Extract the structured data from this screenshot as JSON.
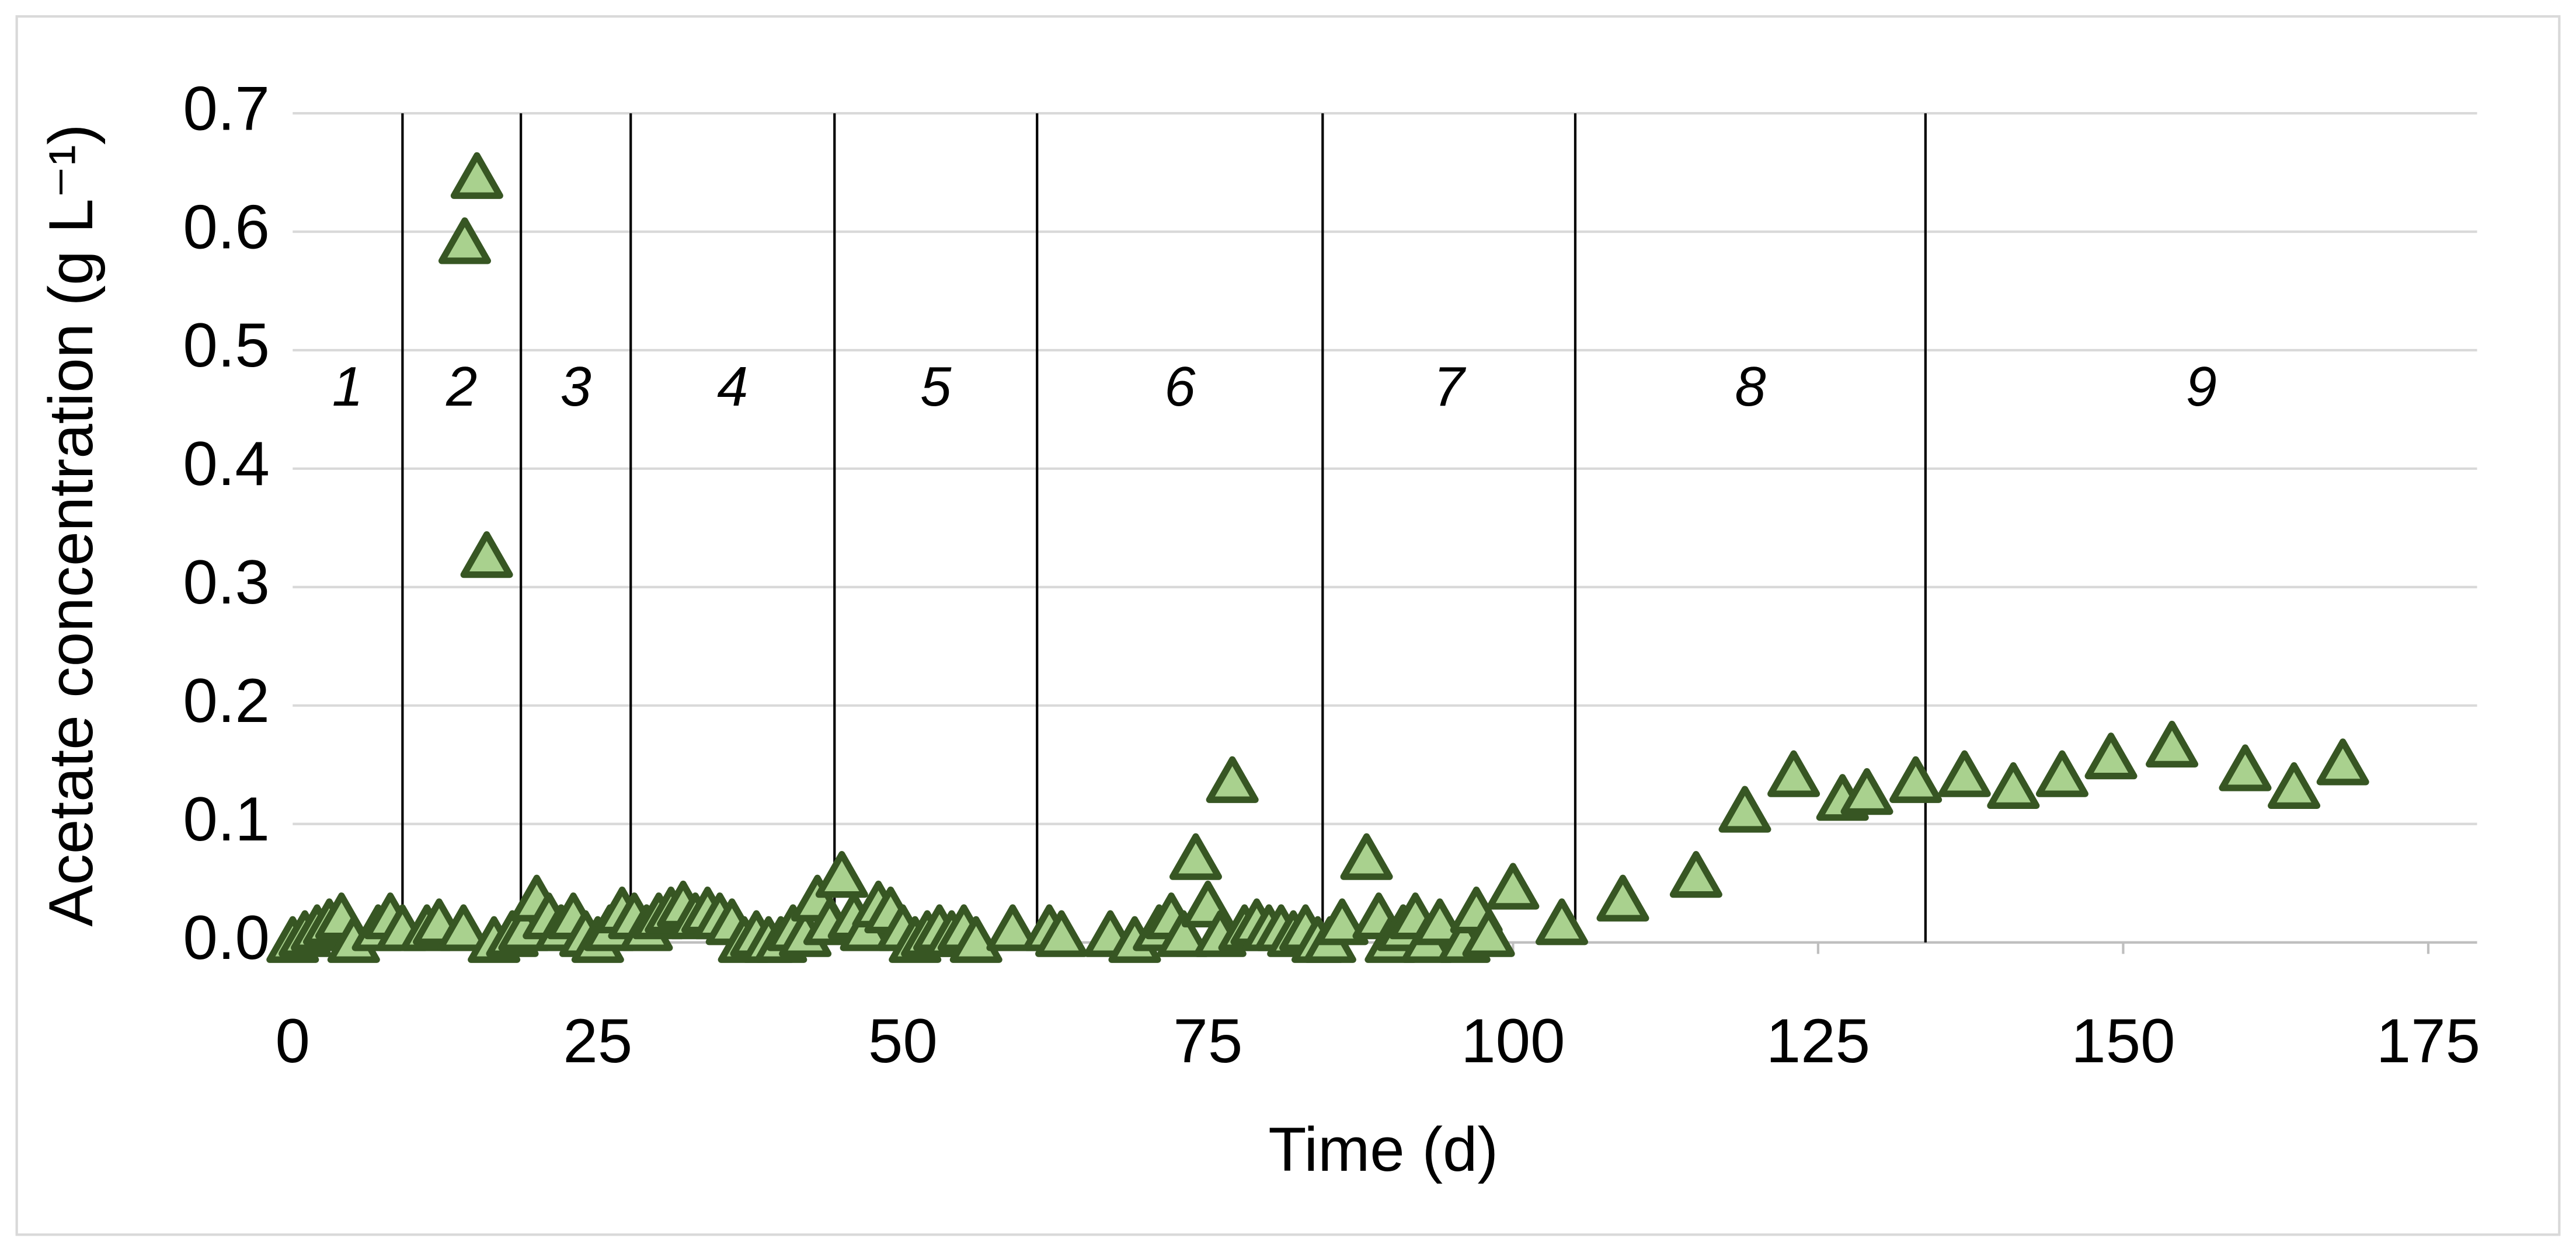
{
  "chart_data": {
    "type": "scatter",
    "x_label": "Time (d)",
    "y_label": "Acetate concentration  (g L⁻¹)",
    "xlim": [
      0,
      179
    ],
    "xticks": [
      0,
      25,
      50,
      75,
      100,
      125,
      150,
      175
    ],
    "ylim": [
      0,
      0.7
    ],
    "yticks": [
      {
        "value": 0,
        "label": "0.0"
      },
      0.1,
      0.2,
      0.3,
      0.4,
      0.5,
      0.6,
      0.7
    ],
    "grid": true,
    "color": "#a9d18e",
    "edge_color": "#375623",
    "phase_lines": [
      9.0,
      18.7,
      27.7,
      44.4,
      61.0,
      84.4,
      105.1,
      133.8
    ],
    "phase_labels": [
      "1",
      "2",
      "3",
      "4",
      "5",
      "6",
      "7",
      "8",
      "9"
    ],
    "x": [
      0,
      1,
      2,
      3,
      4,
      5,
      7,
      8,
      9,
      11,
      12,
      14,
      14.1,
      15.1,
      15.9,
      16.5,
      18,
      19,
      20,
      21,
      22,
      23,
      24,
      25,
      26,
      27,
      28,
      29,
      30,
      31,
      32,
      33,
      34,
      35,
      36,
      37,
      38,
      39,
      40,
      41,
      42,
      43,
      44,
      45,
      46,
      47,
      48,
      49,
      50,
      51,
      52,
      53,
      54,
      55,
      56,
      59,
      62,
      63,
      67,
      69,
      71,
      72,
      73,
      74,
      75,
      76,
      77,
      78,
      79,
      80,
      81,
      82,
      83,
      84,
      85,
      86,
      88,
      89,
      90,
      91,
      92,
      93,
      94,
      96,
      97,
      98,
      100,
      104,
      109,
      115,
      119,
      123,
      127,
      129,
      133,
      137,
      141,
      145,
      149,
      154,
      160,
      164,
      168
    ],
    "values": [
      0,
      0.005,
      0.01,
      0.015,
      0.02,
      0,
      0.01,
      0.02,
      0.01,
      0.01,
      0.015,
      0.01,
      0.59,
      0.645,
      0.325,
      0,
      0.005,
      0.01,
      0.035,
      0.02,
      0.01,
      0.02,
      0.005,
      0,
      0.01,
      0.025,
      0.02,
      0.01,
      0.02,
      0.025,
      0.03,
      0.02,
      0.025,
      0.02,
      0.015,
      0,
      0.005,
      0,
      0,
      0.01,
      0.005,
      0.035,
      0.015,
      0.055,
      0.02,
      0.01,
      0.03,
      0.025,
      0.01,
      0,
      0.005,
      0.01,
      0.005,
      0.01,
      0,
      0.01,
      0.01,
      0.005,
      0.005,
      0,
      0.01,
      0.02,
      0.005,
      0.07,
      0.03,
      0.005,
      0.135,
      0.01,
      0.015,
      0.01,
      0.01,
      0.005,
      0.01,
      0,
      0,
      0.015,
      0.07,
      0.02,
      0,
      0.01,
      0.02,
      0,
      0.015,
      0,
      0.025,
      0.005,
      0.045,
      0.015,
      0.035,
      0.055,
      0.11,
      0.14,
      0.12,
      0.125,
      0.135,
      0.14,
      0.13,
      0.14,
      0.155,
      0.165,
      0.145,
      0.13,
      0.15
    ]
  }
}
